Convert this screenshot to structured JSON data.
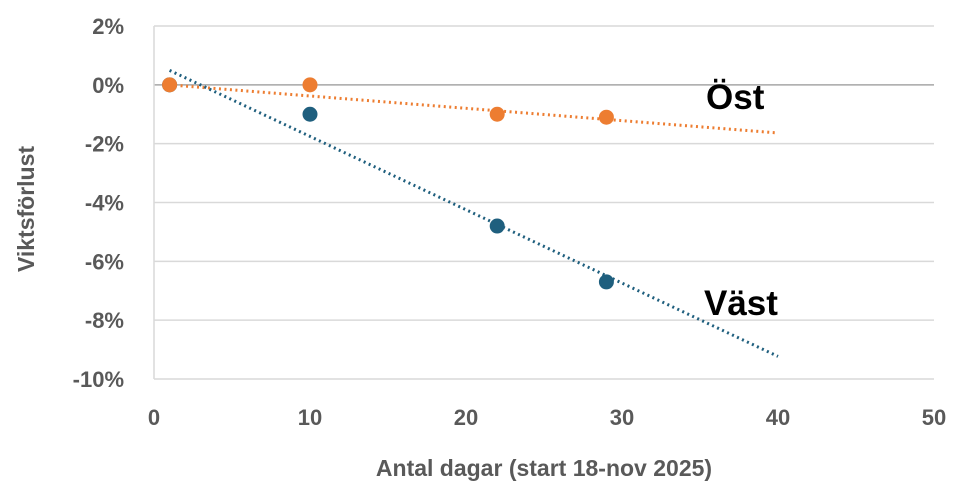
{
  "chart_data": {
    "type": "scatter",
    "title": "",
    "xlabel": "Antal dagar (start 18-nov 2025)",
    "ylabel": "Viktsförlust",
    "xlim": [
      0,
      50
    ],
    "ylim": [
      -10,
      2
    ],
    "x_ticks": [
      0,
      10,
      20,
      30,
      40,
      50
    ],
    "y_ticks": [
      2,
      0,
      -2,
      -4,
      -6,
      -8,
      -10
    ],
    "y_tick_format": "percent",
    "grid": "horizontal",
    "series": [
      {
        "name": "Öst",
        "color": "#ED7D31",
        "x": [
          1,
          10,
          22,
          29
        ],
        "y": [
          0,
          0,
          -1.0,
          -1.1
        ],
        "trendline": {
          "style": "dotted",
          "x_range": [
            1,
            40
          ],
          "slope": -0.0419,
          "intercept": 0.04
        }
      },
      {
        "name": "Väst",
        "color": "#1F5F7E",
        "x": [
          1,
          10,
          22,
          29
        ],
        "y": [
          0,
          -1.0,
          -4.8,
          -6.7
        ],
        "trendline": {
          "style": "dotted",
          "x_range": [
            1,
            40
          ],
          "slope": -0.2493,
          "intercept": 0.74
        }
      }
    ]
  }
}
